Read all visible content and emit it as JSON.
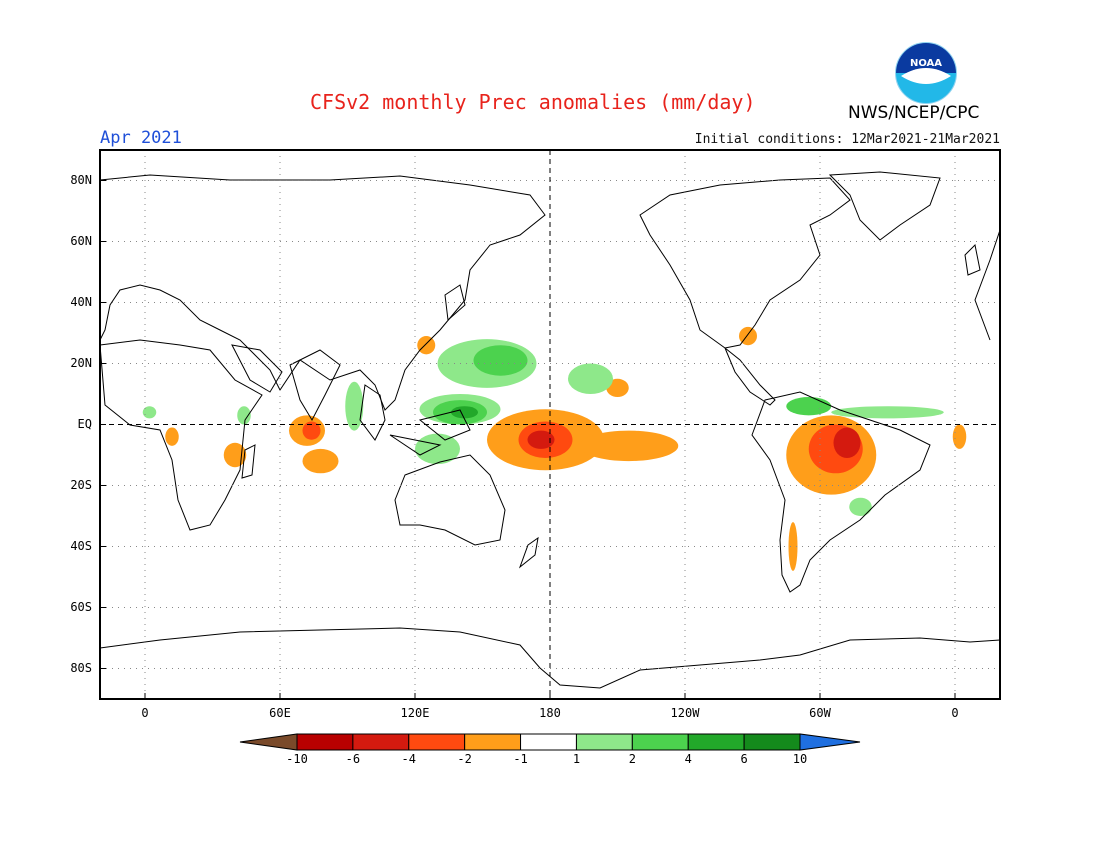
{
  "header": {
    "title": "CFSv2 monthly Prec anomalies (mm/day)",
    "month": "Apr 2021",
    "initial_conditions": "Initial conditions: 12Mar2021-21Mar2021",
    "agency": "NWS/NCEP/CPC",
    "logo_text": "NOAA"
  },
  "axes": {
    "latitude_labels": [
      "80N",
      "60N",
      "40N",
      "20N",
      "EQ",
      "20S",
      "40S",
      "60S",
      "80S"
    ],
    "latitude_values": [
      80,
      60,
      40,
      20,
      0,
      -20,
      -40,
      -60,
      -80
    ],
    "longitude_labels": [
      "0",
      "60E",
      "120E",
      "180",
      "120W",
      "60W",
      "0"
    ],
    "longitude_values": [
      0,
      60,
      120,
      180,
      240,
      300,
      360
    ]
  },
  "colorbar": {
    "labels": [
      "-10",
      "-6",
      "-4",
      "-2",
      "-1",
      "1",
      "2",
      "4",
      "6",
      "10"
    ],
    "colors": [
      "#7a4a2a",
      "#b80000",
      "#d41a0f",
      "#ff4a10",
      "#ff9e1a",
      "#ffffff",
      "#8ee88a",
      "#4cd24e",
      "#22a82a",
      "#148a1c",
      "#1f6fe0"
    ]
  },
  "anomaly_regions": [
    {
      "level": "-2",
      "color": "#ff9e1a",
      "lon": 178,
      "lat": -5,
      "rlon": 26,
      "rlat": 10
    },
    {
      "level": "-4",
      "color": "#ff4a10",
      "lon": 178,
      "lat": -5,
      "rlon": 12,
      "rlat": 6
    },
    {
      "level": "-6",
      "color": "#d41a0f",
      "lon": 176,
      "lat": -5,
      "rlon": 6,
      "rlat": 3
    },
    {
      "level": "-2",
      "color": "#ff9e1a",
      "lon": 215,
      "lat": -7,
      "rlon": 22,
      "rlat": 5
    },
    {
      "level": "-2",
      "color": "#ff9e1a",
      "lon": 305,
      "lat": -10,
      "rlon": 20,
      "rlat": 13
    },
    {
      "level": "-4",
      "color": "#ff4a10",
      "lon": 307,
      "lat": -8,
      "rlon": 12,
      "rlat": 8
    },
    {
      "level": "-6",
      "color": "#d41a0f",
      "lon": 312,
      "lat": -6,
      "rlon": 6,
      "rlat": 5
    },
    {
      "level": "-2",
      "color": "#ff9e1a",
      "lon": 72,
      "lat": -2,
      "rlon": 8,
      "rlat": 5
    },
    {
      "level": "-4",
      "color": "#ff4a10",
      "lon": 74,
      "lat": -2,
      "rlon": 4,
      "rlat": 3
    },
    {
      "level": "-2",
      "color": "#ff9e1a",
      "lon": 78,
      "lat": -12,
      "rlon": 8,
      "rlat": 4
    },
    {
      "level": "-2",
      "color": "#ff9e1a",
      "lon": 40,
      "lat": -10,
      "rlon": 5,
      "rlat": 4
    },
    {
      "level": "-2",
      "color": "#ff9e1a",
      "lon": 12,
      "lat": -4,
      "rlon": 3,
      "rlat": 3
    },
    {
      "level": "-2",
      "color": "#ff9e1a",
      "lon": 210,
      "lat": 12,
      "rlon": 5,
      "rlat": 3
    },
    {
      "level": "-2",
      "color": "#ff9e1a",
      "lon": 268,
      "lat": 29,
      "rlon": 4,
      "rlat": 3
    },
    {
      "level": "-2",
      "color": "#ff9e1a",
      "lon": 125,
      "lat": 26,
      "rlon": 4,
      "rlat": 3
    },
    {
      "level": "-2",
      "color": "#ff9e1a",
      "lon": 362,
      "lat": -4,
      "rlon": 3,
      "rlat": 4
    },
    {
      "level": "-2",
      "color": "#ff9e1a",
      "lon": 288,
      "lat": -40,
      "rlon": 2,
      "rlat": 8
    },
    {
      "level": "1",
      "color": "#8ee88a",
      "lon": 152,
      "lat": 20,
      "rlon": 22,
      "rlat": 8
    },
    {
      "level": "2",
      "color": "#4cd24e",
      "lon": 158,
      "lat": 21,
      "rlon": 12,
      "rlat": 5
    },
    {
      "level": "1",
      "color": "#8ee88a",
      "lon": 198,
      "lat": 15,
      "rlon": 10,
      "rlat": 5
    },
    {
      "level": "1",
      "color": "#8ee88a",
      "lon": 140,
      "lat": 5,
      "rlon": 18,
      "rlat": 5
    },
    {
      "level": "2",
      "color": "#4cd24e",
      "lon": 140,
      "lat": 4,
      "rlon": 12,
      "rlat": 4
    },
    {
      "level": "4",
      "color": "#22a82a",
      "lon": 142,
      "lat": 4,
      "rlon": 6,
      "rlat": 2
    },
    {
      "level": "1",
      "color": "#8ee88a",
      "lon": 130,
      "lat": -8,
      "rlon": 10,
      "rlat": 5
    },
    {
      "level": "1",
      "color": "#8ee88a",
      "lon": 93,
      "lat": 6,
      "rlon": 4,
      "rlat": 8
    },
    {
      "level": "1",
      "color": "#8ee88a",
      "lon": 330,
      "lat": 4,
      "rlon": 25,
      "rlat": 2
    },
    {
      "level": "2",
      "color": "#4cd24e",
      "lon": 295,
      "lat": 6,
      "rlon": 10,
      "rlat": 3
    },
    {
      "level": "1",
      "color": "#8ee88a",
      "lon": 318,
      "lat": -27,
      "rlon": 5,
      "rlat": 3
    },
    {
      "level": "1",
      "color": "#8ee88a",
      "lon": 44,
      "lat": 3,
      "rlon": 3,
      "rlat": 3
    },
    {
      "level": "1",
      "color": "#8ee88a",
      "lon": 2,
      "lat": 4,
      "rlon": 3,
      "rlat": 2
    }
  ]
}
